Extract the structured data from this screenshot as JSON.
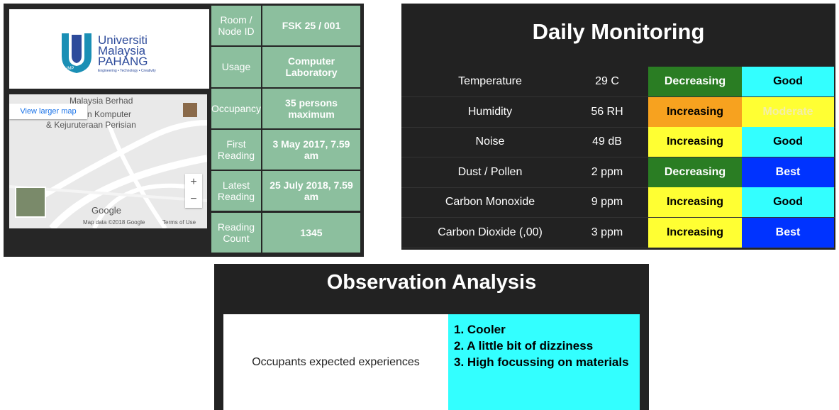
{
  "logo": {
    "name": [
      "Universiti",
      "Malaysia",
      "PAHANG"
    ],
    "tagline": "Engineering • Technology • Creativity",
    "badge": "UMP"
  },
  "map": {
    "place": "Malaysia Berhad",
    "link": "View larger map",
    "label": [
      "n Komputer",
      "& Kejuruteraan Perisian"
    ],
    "zoom_in": "+",
    "zoom_out": "−",
    "brand": "Google",
    "attribution": "Map data ©2018 Google",
    "terms": "Terms of Use"
  },
  "node_info": {
    "rows": [
      [
        "Room / Node ID",
        "FSK 25 / 001"
      ],
      [
        "Usage",
        "Computer Laboratory"
      ],
      [
        "Occupancy",
        "35 persons maximum"
      ],
      [
        "First Reading",
        "3 May 2017, 7.59 am"
      ],
      [
        "Latest Reading",
        "25 July 2018, 7.59 am"
      ],
      [
        "Reading Count",
        "1345"
      ]
    ]
  },
  "daily_monitoring": {
    "title": "Daily Monitoring",
    "rows": [
      [
        "Temperature",
        "29 C",
        "Decreasing",
        "Good"
      ],
      [
        "Humidity",
        "56 RH",
        "Increasing",
        "Moderate"
      ],
      [
        "Noise",
        "49 dB",
        "Increasing",
        "Good"
      ],
      [
        "Dust / Pollen",
        "2 ppm",
        "Decreasing",
        "Best"
      ],
      [
        "Carbon Monoxide",
        "9 ppm",
        "Increasing",
        "Good"
      ],
      [
        "Carbon Dioxide (,00)",
        "3 ppm",
        "Increasing",
        "Best"
      ]
    ]
  },
  "observation_analysis": {
    "title": "Observation Analysis",
    "label": "Occupants expected experiences",
    "items": [
      "1. Cooler",
      "2. A little bit of dizziness",
      "3. High focussing on materials"
    ]
  }
}
